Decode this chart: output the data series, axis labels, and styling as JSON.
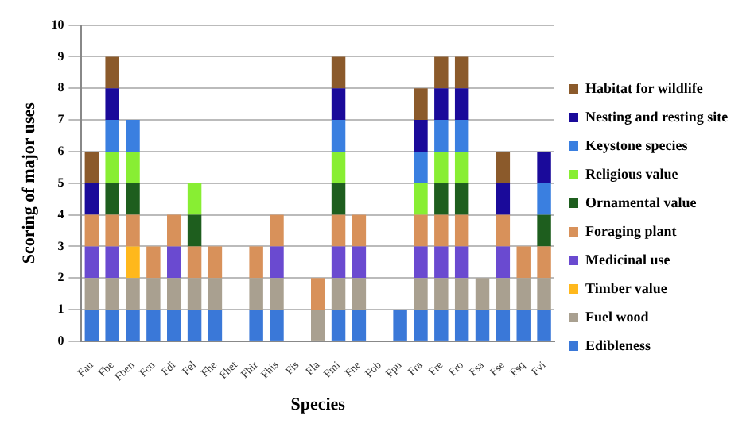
{
  "chart_data": {
    "type": "bar",
    "stacked": true,
    "xlabel": "Species",
    "ylabel": "Scoring of major uses",
    "categories": [
      "Fau",
      "Fbe",
      "Fben",
      "Fcu",
      "Fdi",
      "Fel",
      "Fhe",
      "Fhet",
      "Fhir",
      "Fhis",
      "Fis",
      "Fla",
      "Fmi",
      "Fne",
      "Fob",
      "Fpu",
      "Fra",
      "Fre",
      "Fro",
      "Fsa",
      "Fse",
      "Fsq",
      "Fvi"
    ],
    "series": [
      {
        "name": "Edibleness",
        "color": "#3a78d8",
        "values": [
          1,
          1,
          1,
          1,
          1,
          1,
          1,
          0,
          1,
          1,
          0,
          0,
          1,
          1,
          0,
          1,
          1,
          1,
          1,
          1,
          1,
          1,
          1
        ]
      },
      {
        "name": "Fuel wood",
        "color": "#a9a090",
        "values": [
          1,
          1,
          1,
          1,
          1,
          1,
          1,
          0,
          1,
          1,
          0,
          1,
          1,
          1,
          0,
          0,
          1,
          1,
          1,
          1,
          1,
          1,
          1
        ]
      },
      {
        "name": "Timber value",
        "color": "#ffb81c",
        "values": [
          0,
          0,
          1,
          0,
          0,
          0,
          0,
          0,
          0,
          0,
          0,
          0,
          0,
          0,
          0,
          0,
          0,
          0,
          0,
          0,
          0,
          0,
          0
        ]
      },
      {
        "name": "Medicinal use",
        "color": "#6a4ad0",
        "values": [
          1,
          1,
          0,
          0,
          1,
          0,
          0,
          0,
          0,
          1,
          0,
          0,
          1,
          1,
          0,
          0,
          1,
          1,
          1,
          0,
          1,
          0,
          0
        ]
      },
      {
        "name": "Foraging plant",
        "color": "#d8915a",
        "values": [
          1,
          1,
          1,
          1,
          1,
          1,
          1,
          0,
          1,
          1,
          0,
          1,
          1,
          1,
          0,
          0,
          1,
          1,
          1,
          0,
          1,
          1,
          1
        ]
      },
      {
        "name": "Ornamental value",
        "color": "#1e5e1e",
        "values": [
          0,
          1,
          1,
          0,
          0,
          1,
          0,
          0,
          0,
          0,
          0,
          0,
          1,
          0,
          0,
          0,
          0,
          1,
          1,
          0,
          0,
          0,
          1
        ]
      },
      {
        "name": "Religious value",
        "color": "#88ee33",
        "values": [
          0,
          1,
          1,
          0,
          0,
          1,
          0,
          0,
          0,
          0,
          0,
          0,
          1,
          0,
          0,
          0,
          1,
          1,
          1,
          0,
          0,
          0,
          0
        ]
      },
      {
        "name": "Keystone species",
        "color": "#3a7fe0",
        "values": [
          0,
          1,
          1,
          0,
          0,
          0,
          0,
          0,
          0,
          0,
          0,
          0,
          1,
          0,
          0,
          0,
          1,
          1,
          1,
          0,
          0,
          0,
          1
        ]
      },
      {
        "name": "Nesting and resting site",
        "color": "#1a0a9a",
        "values": [
          1,
          1,
          0,
          0,
          0,
          0,
          0,
          0,
          0,
          0,
          0,
          0,
          1,
          0,
          0,
          0,
          1,
          1,
          1,
          0,
          1,
          0,
          1
        ]
      },
      {
        "name": "Habitat for wildlife",
        "color": "#8b5a2b",
        "values": [
          1,
          1,
          0,
          0,
          0,
          0,
          0,
          0,
          0,
          0,
          0,
          0,
          1,
          0,
          0,
          0,
          1,
          1,
          1,
          0,
          1,
          0,
          0
        ]
      }
    ],
    "ylim": [
      0,
      10
    ],
    "yticks": [
      0,
      1,
      2,
      3,
      4,
      5,
      6,
      7,
      8,
      9,
      10
    ],
    "grid": "y",
    "legend": "right"
  }
}
